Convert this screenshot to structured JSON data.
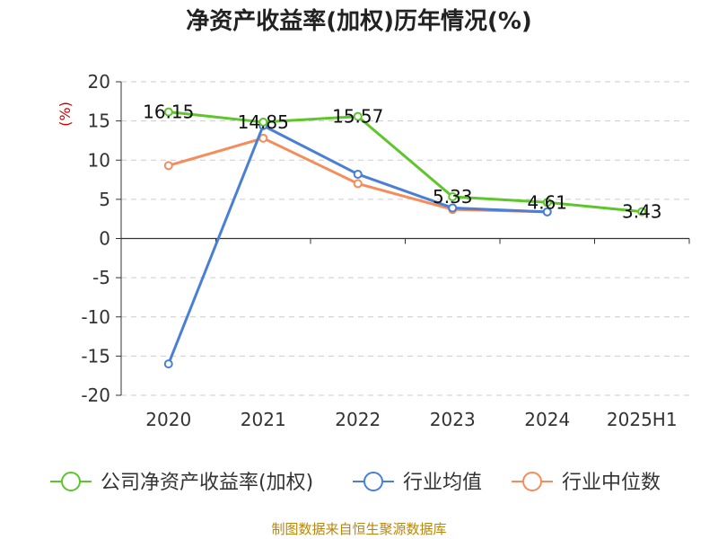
{
  "chart_data": {
    "type": "line",
    "title": "净资产收益率(加权)历年情况(%)",
    "ylabel": "(%)",
    "categories": [
      "2020",
      "2021",
      "2022",
      "2023",
      "2024",
      "2025H1"
    ],
    "ylim": [
      -20,
      20
    ],
    "yticks": [
      20,
      15,
      10,
      5,
      0,
      -5,
      -10,
      -15,
      -20
    ],
    "grid": true,
    "legend_position": "bottom",
    "series": [
      {
        "name": "公司净资产收益率(加权)",
        "color": "#5cc62a",
        "values": [
          16.15,
          14.85,
          15.57,
          5.33,
          4.61,
          3.43
        ],
        "labeled": true
      },
      {
        "name": "行业均值",
        "color": "#4a7fd6",
        "values": [
          -16.0,
          14.4,
          8.2,
          3.9,
          3.4,
          null
        ],
        "labeled": false
      },
      {
        "name": "行业中位数",
        "color": "#f58c5a",
        "values": [
          9.3,
          12.8,
          7.0,
          3.7,
          3.4,
          null
        ],
        "labeled": false
      }
    ]
  },
  "footer": {
    "source": "制图数据来自恒生聚源数据库"
  }
}
